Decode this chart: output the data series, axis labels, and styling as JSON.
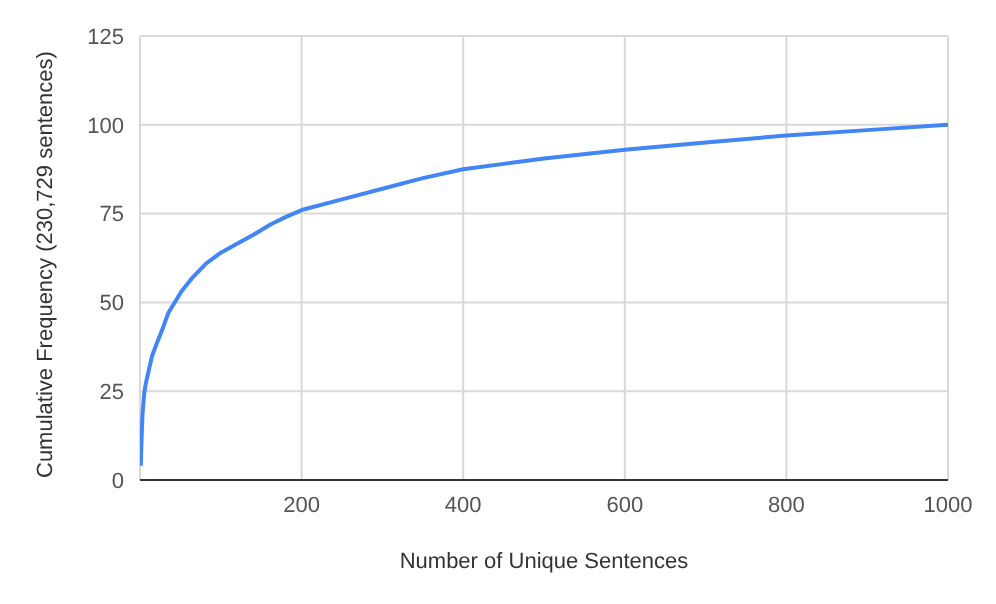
{
  "chart_data": {
    "type": "line",
    "xlabel": "Number of Unique Sentences",
    "ylabel": "Cumulative Frequency (230,729 sentences)",
    "x": [
      1,
      2,
      3,
      5,
      7,
      10,
      15,
      20,
      27,
      35,
      51,
      65,
      82,
      100,
      124,
      140,
      162,
      180,
      200,
      250,
      300,
      350,
      400,
      450,
      500,
      600,
      700,
      800,
      900,
      1000
    ],
    "series": [
      {
        "color": "#4285f4",
        "values": [
          4,
          12,
          18,
          24,
          27,
          30,
          35,
          38,
          42,
          47,
          53,
          57,
          61,
          64,
          67,
          69,
          72,
          74,
          76,
          79,
          82,
          85,
          87.5,
          89,
          90.5,
          93,
          95,
          97,
          98.5,
          100
        ]
      }
    ],
    "xlim": [
      0,
      1000
    ],
    "xticks": [
      200,
      400,
      600,
      800,
      1000
    ],
    "ylim": [
      0,
      125
    ],
    "yticks": [
      0,
      25,
      50,
      75,
      100,
      125
    ],
    "grid": true,
    "legend": false,
    "marker": "none",
    "line_style": "solid"
  }
}
